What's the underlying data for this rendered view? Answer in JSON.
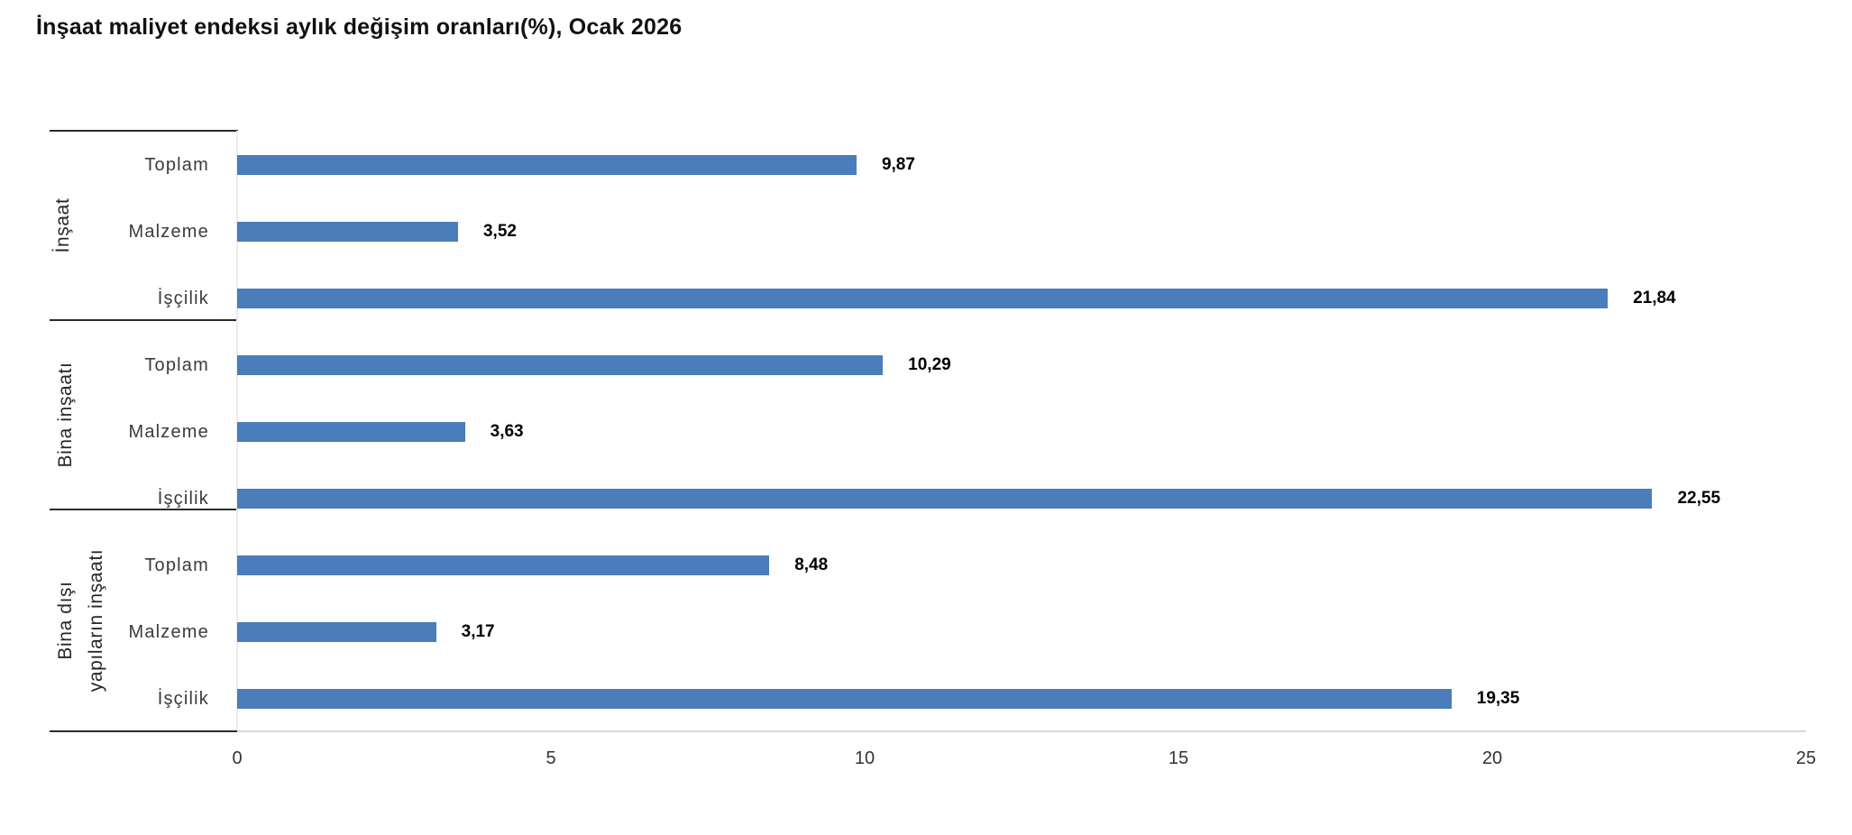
{
  "chart_data": {
    "type": "bar",
    "orientation": "horizontal",
    "title": "İnşaat maliyet endeksi aylık değişim oranları(%), Ocak 2026",
    "bar_color": "#4a7dba",
    "xlabel": "",
    "ylabel": "",
    "xlim": [
      0,
      25
    ],
    "xticks": [
      0,
      5,
      10,
      15,
      20,
      25
    ],
    "xtick_labels": [
      "0",
      "5",
      "10",
      "15",
      "20",
      "25"
    ],
    "grid": "off",
    "legend": "none",
    "groups": [
      {
        "label": "İnşaat",
        "label_lines": [
          "İnşaat"
        ],
        "rows": [
          {
            "category": "Toplam",
            "value": 9.87,
            "label": "9,87"
          },
          {
            "category": "Malzeme",
            "value": 3.52,
            "label": "3,52"
          },
          {
            "category": "İşçilik",
            "value": 21.84,
            "label": "21,84"
          }
        ]
      },
      {
        "label": "Bina inşaatı",
        "label_lines": [
          "Bina inşaatı"
        ],
        "rows": [
          {
            "category": "Toplam",
            "value": 10.29,
            "label": "10,29"
          },
          {
            "category": "Malzeme",
            "value": 3.63,
            "label": "3,63"
          },
          {
            "category": "İşçilik",
            "value": 22.55,
            "label": "22,55"
          }
        ]
      },
      {
        "label": "Bina dışı yapıların inşaatı",
        "label_lines": [
          "Bina dışı",
          "yapıların inşaatı"
        ],
        "rows": [
          {
            "category": "Toplam",
            "value": 8.48,
            "label": "8,48"
          },
          {
            "category": "Malzeme",
            "value": 3.17,
            "label": "3,17"
          },
          {
            "category": "İşçilik",
            "value": 19.35,
            "label": "19,35"
          }
        ]
      }
    ]
  }
}
